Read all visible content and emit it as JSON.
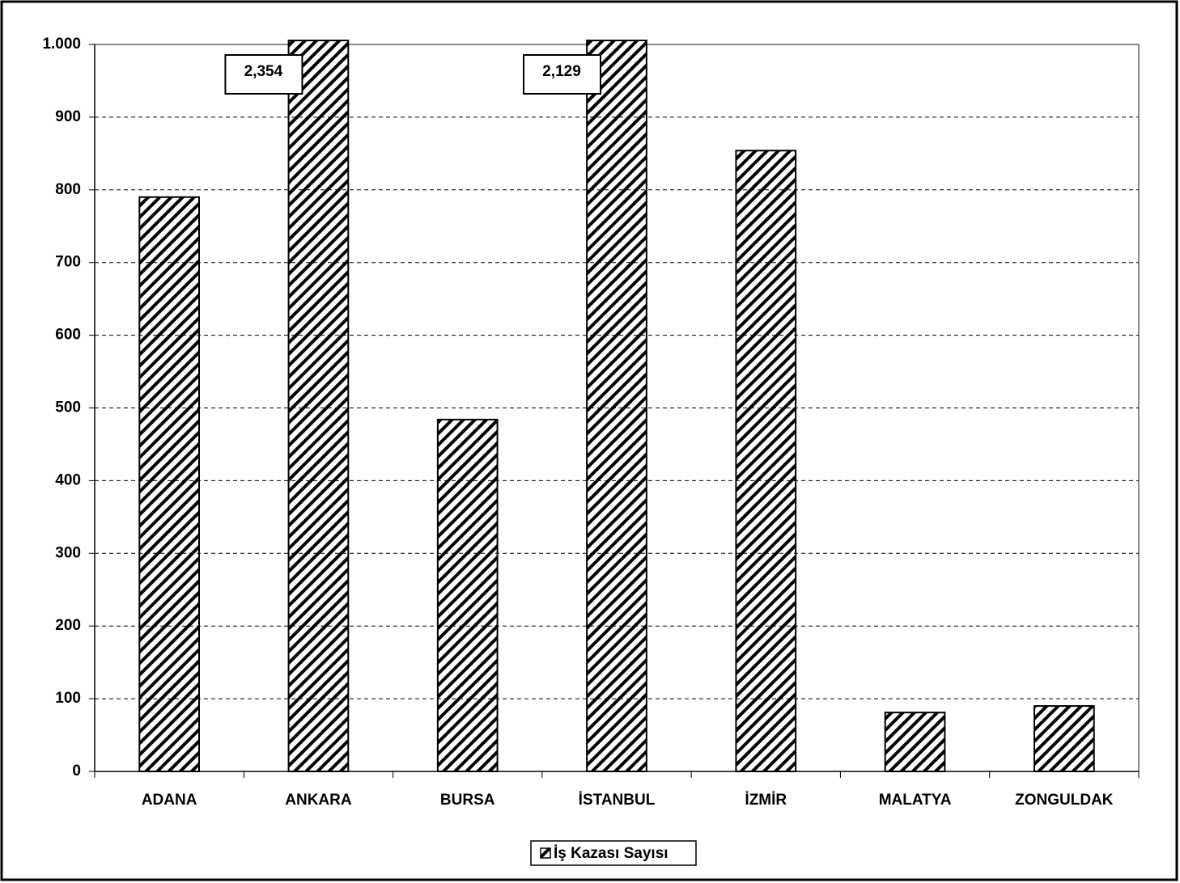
{
  "chart_data": {
    "type": "bar",
    "categories": [
      "ADANA",
      "ANKARA",
      "BURSA",
      "İSTANBUL",
      "İZMİR",
      "MALATYA",
      "ZONGULDAK"
    ],
    "series": [
      {
        "name": "İş Kazası Sayısı",
        "color": "#000000",
        "values": [
          790,
          2354,
          484,
          2129,
          854,
          81,
          90
        ],
        "value_labels": [
          null,
          "2,354",
          null,
          "2,129",
          null,
          null,
          null
        ]
      }
    ],
    "ylim": [
      0,
      1000
    ],
    "yticks": [
      0,
      100,
      200,
      300,
      400,
      500,
      600,
      700,
      800,
      900,
      {
        "value": 1000,
        "label": "1.000"
      }
    ],
    "grid": true,
    "legend": "bottom"
  }
}
